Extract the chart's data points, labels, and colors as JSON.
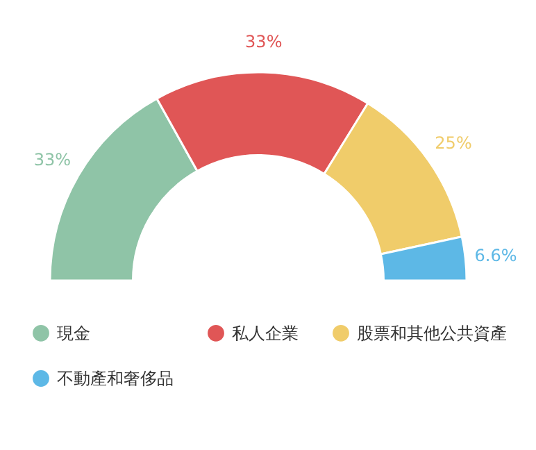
{
  "chart_data": {
    "type": "donut",
    "categories": [
      "現金",
      "私人企業",
      "股票和其他公共資產",
      "不動產和奢侈品"
    ],
    "values": [
      33,
      33,
      25,
      6.6
    ],
    "colors": [
      "#8fc4a7",
      "#e05656",
      "#f0cc6a",
      "#5db8e6"
    ],
    "value_labels": [
      "33%",
      "33%",
      "25%",
      "6.6%"
    ],
    "legend": "bottom"
  }
}
